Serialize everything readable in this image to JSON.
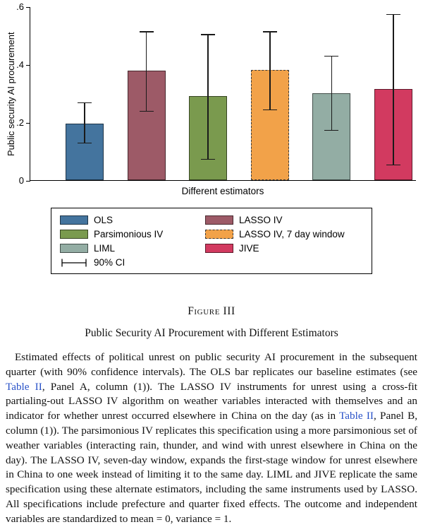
{
  "chart_data": {
    "type": "bar",
    "title": "",
    "xlabel": "Different estimators",
    "ylabel": "Public security AI procurement",
    "ylim": [
      0,
      0.6
    ],
    "yticks": [
      0,
      0.2,
      0.4,
      0.6
    ],
    "ytick_labels": [
      "0",
      ".2",
      ".4",
      ".6"
    ],
    "grid": false,
    "legend_position": "below",
    "ci_level_label": "90% CI",
    "series": [
      {
        "name": "OLS",
        "value": 0.195,
        "ci_low": 0.13,
        "ci_high": 0.27,
        "color": "#44749e",
        "border_style": "solid"
      },
      {
        "name": "LASSO IV",
        "value": 0.378,
        "ci_low": 0.24,
        "ci_high": 0.515,
        "color": "#9d5a67",
        "border_style": "solid"
      },
      {
        "name": "Parsimonious IV",
        "value": 0.29,
        "ci_low": 0.075,
        "ci_high": 0.505,
        "color": "#7a9a4e",
        "border_style": "solid"
      },
      {
        "name": "LASSO IV, 7 day window",
        "value": 0.38,
        "ci_low": 0.245,
        "ci_high": 0.515,
        "color": "#f2a249",
        "border_style": "dashed"
      },
      {
        "name": "LIML",
        "value": 0.3,
        "ci_low": 0.175,
        "ci_high": 0.43,
        "color": "#93ada4",
        "border_style": "solid"
      },
      {
        "name": "JIVE",
        "value": 0.315,
        "ci_low": 0.055,
        "ci_high": 0.575,
        "color": "#d23a60",
        "border_style": "solid"
      }
    ]
  },
  "figure": {
    "label": "Figure III",
    "title": "Public Security AI Procurement with Different Estimators"
  },
  "note": {
    "segments": [
      {
        "type": "text",
        "text": "Estimated effects of political unrest on public security AI procurement in the subsequent quarter (with 90% confidence intervals). The OLS bar replicates our baseline estimates (see "
      },
      {
        "type": "link",
        "text": "Table II"
      },
      {
        "type": "text",
        "text": ", Panel A, column (1)). The LASSO IV instruments for unrest using a cross-fit partialing-out LASSO IV algorithm on weather variables interacted with themselves and an indicator for whether unrest occurred elsewhere in China on the day (as in "
      },
      {
        "type": "link",
        "text": "Table II"
      },
      {
        "type": "text",
        "text": ", Panel B, column (1)). The parsimonious IV replicates this specification using a more parsimonious set of weather variables (interacting rain, thunder, and wind with unrest elsewhere in China on the day). The LASSO IV, seven-day window, expands the first-stage window for unrest elsewhere in China to one week instead of limiting it to the same day. LIML and JIVE replicate the same specification using these alternate estimators, including the same instruments used by LASSO. All specifications include prefecture and quarter fixed effects. The outcome and independent variables are standardized to mean = 0, variance = 1."
      }
    ]
  },
  "colors": {
    "link": "#2851c8",
    "axis": "#000000",
    "error_bar": "#1a1a1a"
  }
}
